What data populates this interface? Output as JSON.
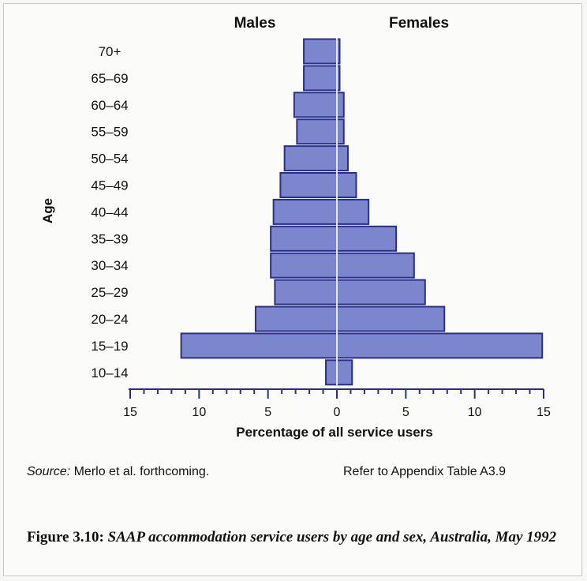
{
  "chart_data": {
    "type": "bar",
    "orientation": "horizontal",
    "subtype": "population-pyramid",
    "column_headers": [
      "Males",
      "Females"
    ],
    "ylabel": "Age",
    "xlabel": "Percentage of all service users",
    "categories": [
      "70+",
      "65–69",
      "60–64",
      "55–59",
      "50–54",
      "45–49",
      "40–44",
      "35–39",
      "30–34",
      "25–29",
      "20–24",
      "15–19",
      "10–14"
    ],
    "series": [
      {
        "name": "Males",
        "values": [
          2.4,
          2.4,
          3.1,
          2.9,
          3.8,
          4.1,
          4.6,
          4.8,
          4.8,
          4.5,
          5.9,
          11.3,
          0.8
        ]
      },
      {
        "name": "Females",
        "values": [
          0.2,
          0.2,
          0.5,
          0.5,
          0.8,
          1.4,
          2.3,
          4.3,
          5.6,
          6.4,
          7.8,
          14.9,
          1.1
        ]
      }
    ],
    "xlim": [
      -15,
      15
    ],
    "tick_values": [
      -15,
      -10,
      -5,
      0,
      5,
      10,
      15
    ],
    "tick_labels": [
      "15",
      "10",
      "5",
      "0",
      "5",
      "10",
      "15"
    ],
    "minor_tick_step": 1,
    "grid": false,
    "legend": "none"
  },
  "source": {
    "label": "Source:",
    "text": " Merlo et al. forthcoming."
  },
  "refer_note": "Refer to Appendix Table A3.9",
  "caption": {
    "number": "Figure 3.10:",
    "text": "SAAP accommodation service users by age and sex, Australia, May 1992"
  },
  "colors": {
    "bar_fill": "#7b86cc",
    "bar_stroke": "#2a2f8a",
    "axis": "#2a2f8a"
  }
}
